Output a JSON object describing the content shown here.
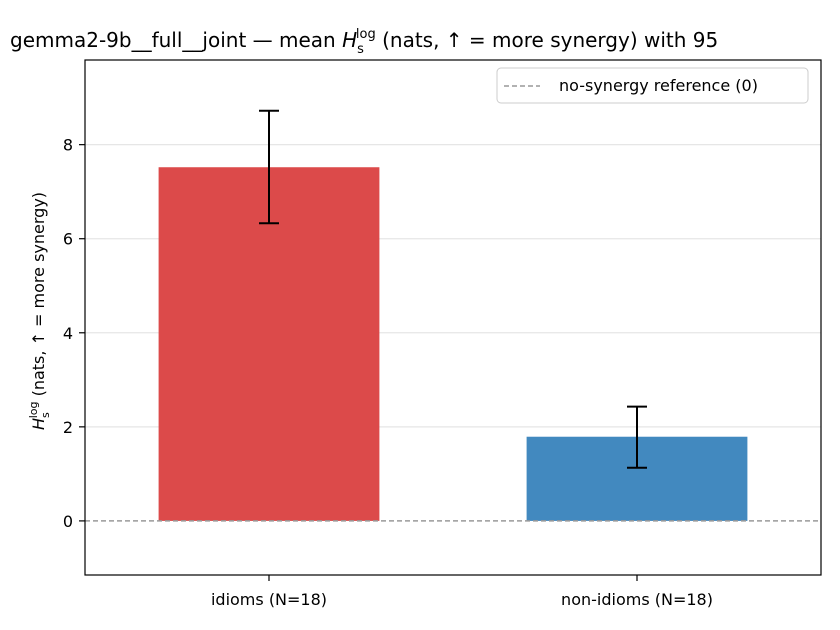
{
  "chart_data": {
    "type": "bar",
    "title_prefix": "gemma2-9b__full__joint — mean ",
    "title_suffix": " (nats, ↑ = more synergy) with 95",
    "ylabel_suffix": " (nats, ↑ = more synergy)",
    "symbol": {
      "base": "H",
      "sub": "s",
      "sup": "log"
    },
    "categories": [
      "idioms (N=18)",
      "non-idioms (N=18)"
    ],
    "values": [
      7.52,
      1.79
    ],
    "errors": [
      {
        "low": 6.33,
        "high": 8.72
      },
      {
        "low": 1.13,
        "high": 2.43
      }
    ],
    "bar_colors": [
      "#dc4a4a",
      "#4289bf"
    ],
    "ylim": [
      -1.15,
      9.8
    ],
    "yticks": [
      0,
      2,
      4,
      6,
      8
    ],
    "reference_line": {
      "y": 0,
      "label": "no-synergy reference (0)",
      "color": "#999999"
    },
    "grid": "y",
    "legend_position": "top-right"
  }
}
